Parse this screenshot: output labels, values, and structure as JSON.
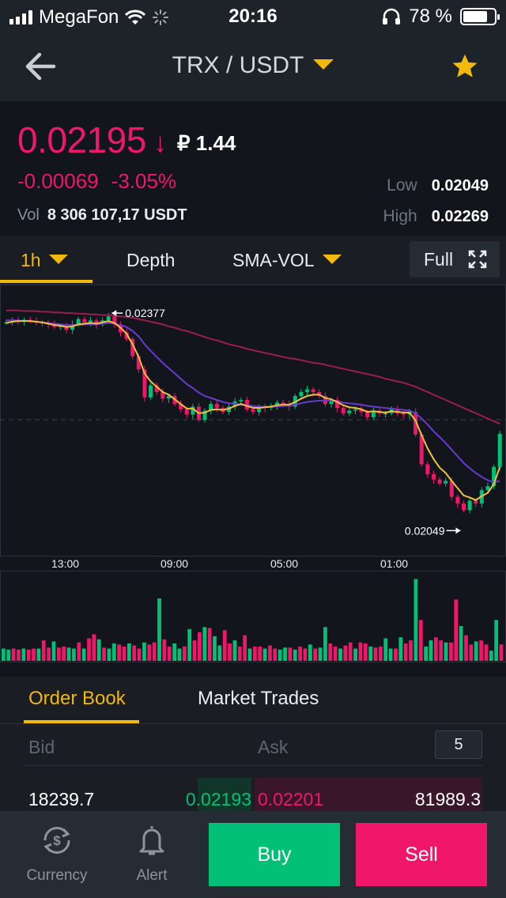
{
  "status_bar": {
    "carrier": "MegaFon",
    "time": "20:16",
    "battery": "78 %",
    "battery_level": 0.78
  },
  "nav": {
    "pair": "TRX / USDT",
    "icons": {
      "back": "arrow-left-icon",
      "favorite": "star-icon"
    },
    "star_color": "#f0b90b"
  },
  "ticker": {
    "last_price": "0.02195",
    "direction_arrow": "↓",
    "fiat_price": "₽ 1.44",
    "change_abs": "-0.00069",
    "change_pct": "-3.05%",
    "vol_label": "Vol",
    "vol_value": "8 306 107,17 USDT",
    "low_label": "Low",
    "low_value": "0.02049",
    "high_label": "High",
    "high_value": "0.02269",
    "down_color": "#f0166a",
    "up_color": "#02c076"
  },
  "chart_tabs": {
    "interval": "1h",
    "depth": "Depth",
    "indicator": "SMA-VOL",
    "full": "Full"
  },
  "chart_data": {
    "type": "line",
    "candle_close": [
      0.02363,
      0.02366,
      0.02365,
      0.02367,
      0.02365,
      0.02363,
      0.02362,
      0.0236,
      0.02356,
      0.02358,
      0.02352,
      0.0236,
      0.02368,
      0.02363,
      0.02366,
      0.0236,
      0.02366,
      0.02372,
      0.0236,
      0.02348,
      0.02338,
      0.02312,
      0.02292,
      0.0225,
      0.02268,
      0.02258,
      0.02248,
      0.02252,
      0.0224,
      0.02232,
      0.02224,
      0.02236,
      0.02216,
      0.0223,
      0.0224,
      0.02234,
      0.02228,
      0.02236,
      0.02244,
      0.02246,
      0.02232,
      0.02228,
      0.02236,
      0.02234,
      0.02236,
      0.02242,
      0.0224,
      0.02236,
      0.02252,
      0.02258,
      0.02262,
      0.02258,
      0.02252,
      0.0224,
      0.02246,
      0.02234,
      0.02226,
      0.0223,
      0.02232,
      0.02228,
      0.0222,
      0.0223,
      0.02226,
      0.02226,
      0.02232,
      0.02226,
      0.02224,
      0.02228,
      0.02194,
      0.02149,
      0.02134,
      0.02126,
      0.0212,
      0.02124,
      0.021,
      0.0209,
      0.0208,
      0.02094,
      0.0209,
      0.0211,
      0.02116,
      0.02145,
      0.02195
    ],
    "ma_short": [
      0.02362,
      0.02364,
      0.02365,
      0.02365,
      0.02365,
      0.02364,
      0.02363,
      0.02361,
      0.02359,
      0.02358,
      0.02356,
      0.02357,
      0.0236,
      0.02361,
      0.02362,
      0.02361,
      0.02363,
      0.02365,
      0.02362,
      0.02355,
      0.02346,
      0.0233,
      0.02311,
      0.02286,
      0.02274,
      0.02266,
      0.02258,
      0.02254,
      0.02247,
      0.0224,
      0.02233,
      0.02233,
      0.02226,
      0.02227,
      0.02231,
      0.02232,
      0.02231,
      0.02233,
      0.02237,
      0.0224,
      0.02237,
      0.02234,
      0.02234,
      0.02235,
      0.02236,
      0.02238,
      0.02239,
      0.02239,
      0.02243,
      0.02248,
      0.02252,
      0.02254,
      0.02254,
      0.02249,
      0.02247,
      0.02243,
      0.02238,
      0.02235,
      0.02234,
      0.02232,
      0.02228,
      0.02229,
      0.02228,
      0.02227,
      0.02229,
      0.02228,
      0.02227,
      0.02227,
      0.02215,
      0.02193,
      0.02173,
      0.02157,
      0.02144,
      0.02136,
      0.02124,
      0.02113,
      0.02102,
      0.02099,
      0.02095,
      0.02101,
      0.02106,
      0.02119,
      0.02145
    ],
    "ma_mid": [
      0.02366,
      0.02366,
      0.02366,
      0.02365,
      0.02365,
      0.02364,
      0.02363,
      0.02362,
      0.02361,
      0.0236,
      0.02359,
      0.02359,
      0.02359,
      0.0236,
      0.0236,
      0.0236,
      0.02361,
      0.02362,
      0.02361,
      0.02359,
      0.02356,
      0.0235,
      0.02342,
      0.0233,
      0.0232,
      0.02311,
      0.02302,
      0.02294,
      0.02286,
      0.02278,
      0.0227,
      0.02264,
      0.02257,
      0.02252,
      0.02249,
      0.02246,
      0.02243,
      0.02241,
      0.0224,
      0.02239,
      0.02238,
      0.02237,
      0.02236,
      0.02236,
      0.02236,
      0.02236,
      0.02237,
      0.02237,
      0.02239,
      0.02241,
      0.02243,
      0.02244,
      0.02245,
      0.02245,
      0.02245,
      0.02244,
      0.02242,
      0.02241,
      0.0224,
      0.02239,
      0.02237,
      0.02236,
      0.02235,
      0.02234,
      0.02233,
      0.02232,
      0.02231,
      0.0223,
      0.02226,
      0.02218,
      0.02209,
      0.02199,
      0.0219,
      0.02181,
      0.02171,
      0.02161,
      0.02151,
      0.02143,
      0.02136,
      0.0213,
      0.02125,
      0.02122,
      0.02124
    ],
    "ma_long": [
      0.02381,
      0.02381,
      0.02381,
      0.0238,
      0.0238,
      0.0238,
      0.02379,
      0.02379,
      0.02378,
      0.02378,
      0.02377,
      0.02377,
      0.02376,
      0.02376,
      0.02375,
      0.02375,
      0.02374,
      0.02374,
      0.02373,
      0.02372,
      0.02371,
      0.0237,
      0.02368,
      0.02366,
      0.02364,
      0.02362,
      0.0236,
      0.02357,
      0.02355,
      0.02352,
      0.0235,
      0.02347,
      0.02344,
      0.02341,
      0.02338,
      0.02336,
      0.02333,
      0.0233,
      0.02328,
      0.02326,
      0.02323,
      0.02321,
      0.02319,
      0.02317,
      0.02315,
      0.02313,
      0.02311,
      0.02309,
      0.02308,
      0.02306,
      0.02304,
      0.02302,
      0.02301,
      0.02299,
      0.02297,
      0.02295,
      0.02293,
      0.02291,
      0.02289,
      0.02287,
      0.02285,
      0.02283,
      0.02281,
      0.02278,
      0.02276,
      0.02274,
      0.02272,
      0.02269,
      0.02266,
      0.02262,
      0.02258,
      0.02254,
      0.0225,
      0.02246,
      0.02242,
      0.02238,
      0.02234,
      0.0223,
      0.02226,
      0.02222,
      0.02218,
      0.02214,
      0.0221
    ],
    "volume": [
      12,
      11,
      12,
      11,
      12,
      11,
      12,
      12,
      20,
      13,
      19,
      13,
      14,
      13,
      12,
      18,
      12,
      22,
      26,
      21,
      13,
      12,
      17,
      16,
      14,
      17,
      15,
      12,
      18,
      16,
      18,
      61,
      21,
      14,
      17,
      12,
      14,
      31,
      20,
      28,
      33,
      32,
      24,
      15,
      30,
      17,
      20,
      14,
      25,
      12,
      14,
      14,
      12,
      15,
      12,
      11,
      13,
      13,
      11,
      14,
      12,
      16,
      12,
      13,
      33,
      17,
      14,
      12,
      15,
      18,
      12,
      18,
      17,
      14,
      13,
      14,
      22,
      12,
      12,
      23,
      17,
      20,
      80,
      40,
      14,
      20,
      23,
      20,
      18,
      18,
      60,
      34,
      25,
      16,
      19,
      20,
      16,
      10,
      40,
      16
    ],
    "ylim": [
      0.0201,
      0.0242
    ],
    "price_marks": {
      "high": "0.02377",
      "low": "0.02049"
    },
    "x_ticks": [
      "13:00",
      "09:00",
      "05:00",
      "01:00"
    ],
    "colors": {
      "up": "#02c076",
      "down": "#f0166a",
      "ma_short": "#f0c040",
      "ma_mid": "#6a3ad0",
      "ma_long": "#9a1d4f"
    },
    "grid": false
  },
  "orderbook": {
    "tab_orderbook": "Order Book",
    "tab_trades": "Market Trades",
    "bid_label": "Bid",
    "ask_label": "Ask",
    "depth_value": "5",
    "rows": [
      {
        "bid_amount": "18239.7",
        "bid_price": "0.02193",
        "ask_price": "0.02201",
        "ask_amount": "81989.3"
      }
    ]
  },
  "bottom_bar": {
    "currency": "Currency",
    "alert": "Alert",
    "buy": "Buy",
    "sell": "Sell",
    "icons": {
      "currency": "currency-exchange-icon",
      "alert": "bell-icon"
    }
  }
}
